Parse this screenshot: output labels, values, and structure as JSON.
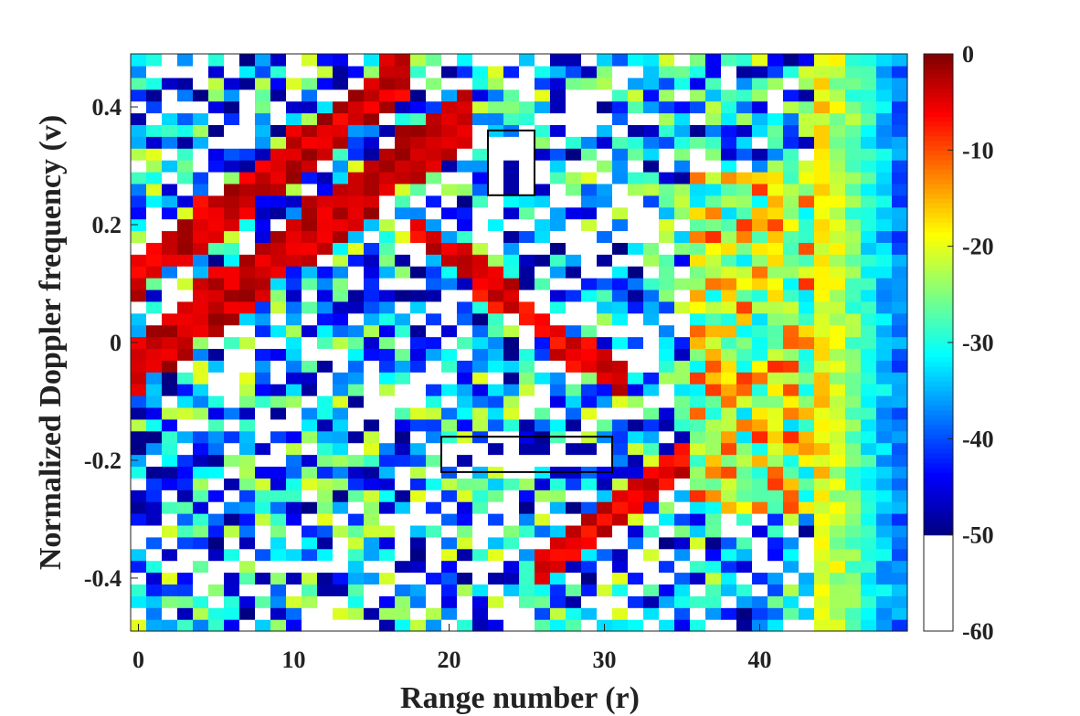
{
  "chart_data": {
    "type": "heatmap",
    "title": "",
    "xlabel": "Range number (r)",
    "ylabel": "Normalized Doppler frequency (v)",
    "xlim": [
      0,
      49
    ],
    "ylim": [
      -0.49,
      0.49
    ],
    "x_ticks": [
      0,
      10,
      20,
      30,
      40
    ],
    "x_tick_labels": [
      "0",
      "10",
      "20",
      "30",
      "40"
    ],
    "y_ticks": [
      0.4,
      0.2,
      0,
      -0.2,
      -0.4
    ],
    "y_tick_labels": [
      "0.4",
      "0.2",
      "0",
      "-0.2",
      "-0.4"
    ],
    "grid": {
      "columns": 50,
      "rows": 49,
      "x_start": -0.5,
      "x_step": 1,
      "v_start": -0.48,
      "v_step": 0.02
    },
    "colorbar": {
      "limits": [
        -60,
        0
      ],
      "ticks": [
        0,
        -10,
        -20,
        -30,
        -40,
        -50,
        -60
      ],
      "tick_labels": [
        "0",
        "-10",
        "-20",
        "-30",
        "-40",
        "-50",
        "-60"
      ],
      "below_min_color": "#ffffff",
      "colormap": "jet"
    },
    "highlight_boxes": [
      {
        "x_range": [
          22.5,
          25.5
        ],
        "v_range": [
          0.26,
          0.35
        ]
      },
      {
        "x_range": [
          19.5,
          30.5
        ],
        "v_range": [
          -0.21,
          -0.17
        ]
      }
    ],
    "colors": {
      "axis": "#222222",
      "box_outline": "#000000"
    }
  }
}
